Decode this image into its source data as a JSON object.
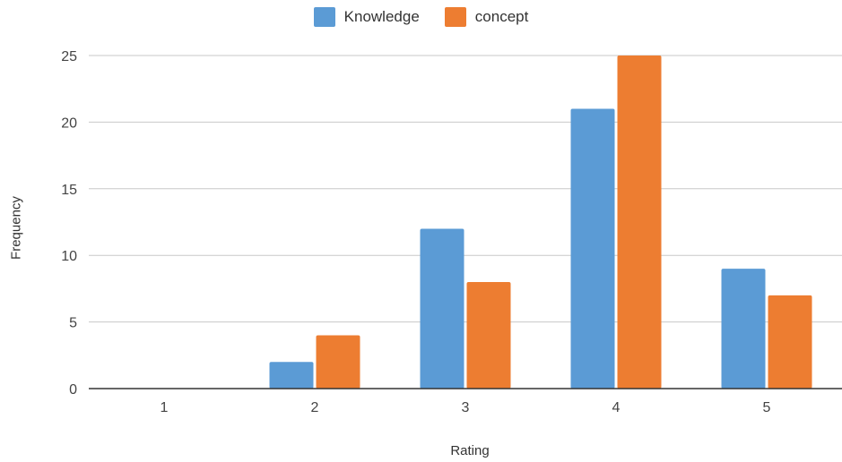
{
  "chart_data": {
    "type": "bar",
    "categories": [
      "1",
      "2",
      "3",
      "4",
      "5"
    ],
    "series": [
      {
        "name": "Knowledge",
        "values": [
          0,
          2,
          12,
          21,
          9
        ],
        "color": "#5b9bd5"
      },
      {
        "name": "concept",
        "values": [
          0,
          4,
          8,
          25,
          7
        ],
        "color": "#ed7d31"
      }
    ],
    "xlabel": "Rating",
    "ylabel": "Frequency",
    "ylim": [
      0,
      25
    ],
    "yticks": [
      "0",
      "5",
      "10",
      "15",
      "20",
      "25"
    ],
    "grid": true,
    "legend_position": "top-center"
  }
}
